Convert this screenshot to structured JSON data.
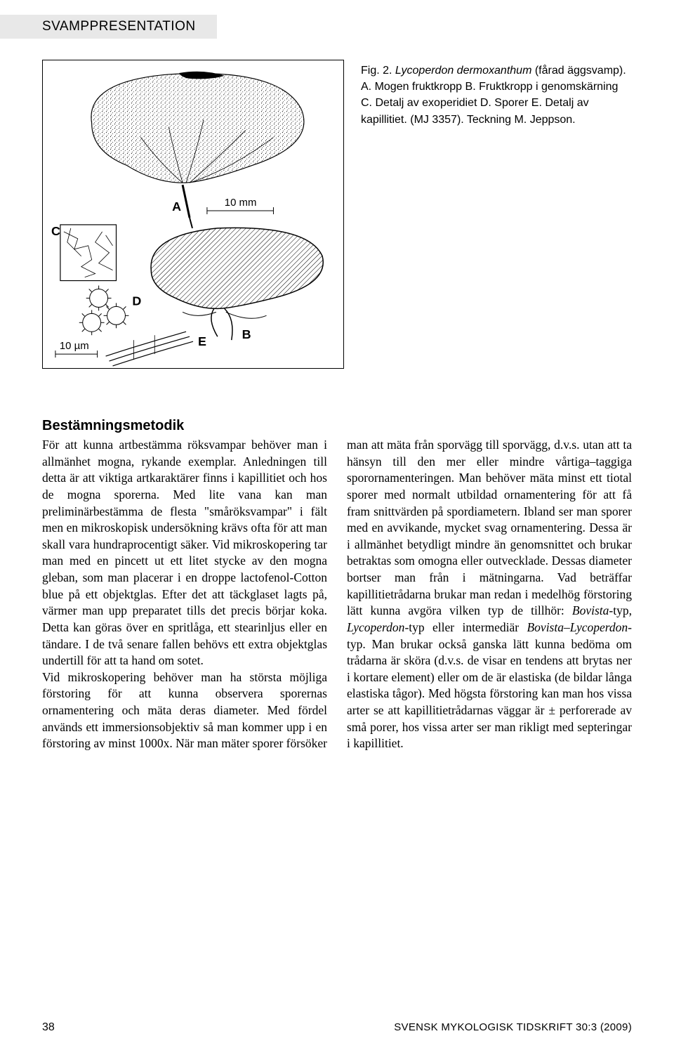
{
  "header": {
    "label": "SVAMPPRESENTATION"
  },
  "caption": "Fig. 2. <i>Lycoperdon dermoxanthum</i> (fårad äggsvamp). A. Mogen fruktkropp B. Fruktkropp i genomskärning C. Detalj av exoperidiet D. Sporer E. Detalj av kapillitiet. (MJ 3357). Teckning M. Jeppson.",
  "figure": {
    "labels": {
      "A": "A",
      "B": "B",
      "C": "C",
      "D": "D",
      "E": "E"
    },
    "scale_top": "10 mm",
    "scale_bottom": "10 µm",
    "colors": {
      "stroke": "#000000",
      "fill_hatch": "#000000",
      "bg": "#ffffff"
    }
  },
  "section": {
    "title": "Bestämningsmetodik"
  },
  "body_html": "För att kunna artbestämma röksvampar behöver man i allmänhet mogna, rykande exemplar. Anledningen till detta är att viktiga artkaraktärer finns i kapillitiet och hos de mogna sporerna. Med lite vana kan man preliminärbestämma de flesta \"småröksvampar\" i fält men en mikroskopisk undersökning krävs ofta för att man skall vara hundraprocentigt säker. Vid mikroskopering tar man med en pincett ut ett litet stycke av den mogna gleban, som man placerar i en droppe lactofenol-Cotton blue på ett objektglas. Efter det att täckglaset lagts på, värmer man upp preparatet tills det precis börjar koka. Detta kan göras över en spritlåga, ett stearinljus eller en tändare. I de två senare fallen behövs ett extra objektglas undertill för att ta hand om sotet.<br>Vid mikroskopering behöver man ha största möjliga förstoring för att kunna observera sporernas ornamentering och mäta deras diameter. Med fördel används ett immersionsobjektiv så man kommer upp i en förstoring av minst 1000x. När man mäter sporer försöker man att mäta från sporvägg till sporvägg, d.v.s. utan att ta hänsyn till den mer eller mindre vårtiga–taggiga sporornamenteringen. Man behöver mäta minst ett tiotal sporer med normalt utbildad ornamentering för att få fram snittvärden på spordiametern. Ibland ser man sporer med en avvikande, mycket svag ornamentering. Dessa är i allmänhet betydligt mindre än genomsnittet och brukar betraktas som omogna eller outvecklade. Dessas diameter bortser man från i mätningarna. Vad beträffar kapillitietrådarna brukar man redan i medelhög förstoring lätt kunna avgöra vilken typ de tillhör: <i>Bovista</i>-typ, <i>Lycoperdon</i>-typ eller intermediär <i>Bovista</i>–<i>Lycoperdon</i>-typ. Man brukar också ganska lätt kunna bedöma om trådarna är sköra (d.v.s. de visar en tendens att brytas ner i kortare element) eller om de är elastiska (de bildar långa elastiska tågor). Med högsta förstoring kan man hos vissa arter se att kapillitietrådarnas väggar är ± perforerade av små porer, hos vissa arter ser man rikligt med septeringar i kapillitiet.",
  "footer": {
    "page": "38",
    "journal": "SVENSK MYKOLOGISK TIDSKRIFT 30:3 (2009)"
  }
}
